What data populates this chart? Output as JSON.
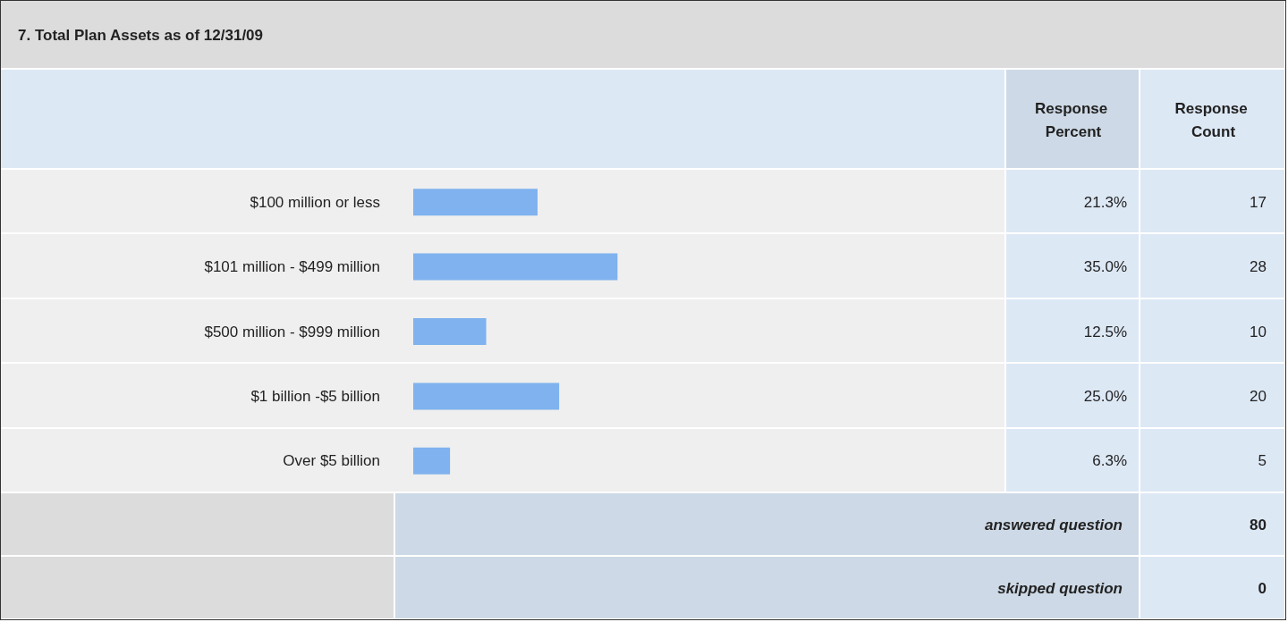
{
  "chart_data": {
    "type": "bar",
    "orientation": "horizontal",
    "title": "7. Total Plan Assets as of 12/31/09",
    "categories": [
      "$100 million or less",
      "$101 million - $499 million",
      "$500 million - $999 million",
      "$1 billion -$5 billion",
      "Over $5 billion"
    ],
    "series": [
      {
        "name": "Response Percent",
        "color": "#7fb2ee",
        "values": [
          21.3,
          35.0,
          12.5,
          25.0,
          6.3
        ],
        "value_labels": [
          "21.3%",
          "35.0%",
          "12.5%",
          "25.0%",
          "6.3%"
        ]
      }
    ],
    "legend": false,
    "annotations": [
      "Response Count",
      "17",
      "28",
      "10",
      "20",
      "5",
      "answered question",
      "80",
      "skipped question",
      "0"
    ]
  }
}
